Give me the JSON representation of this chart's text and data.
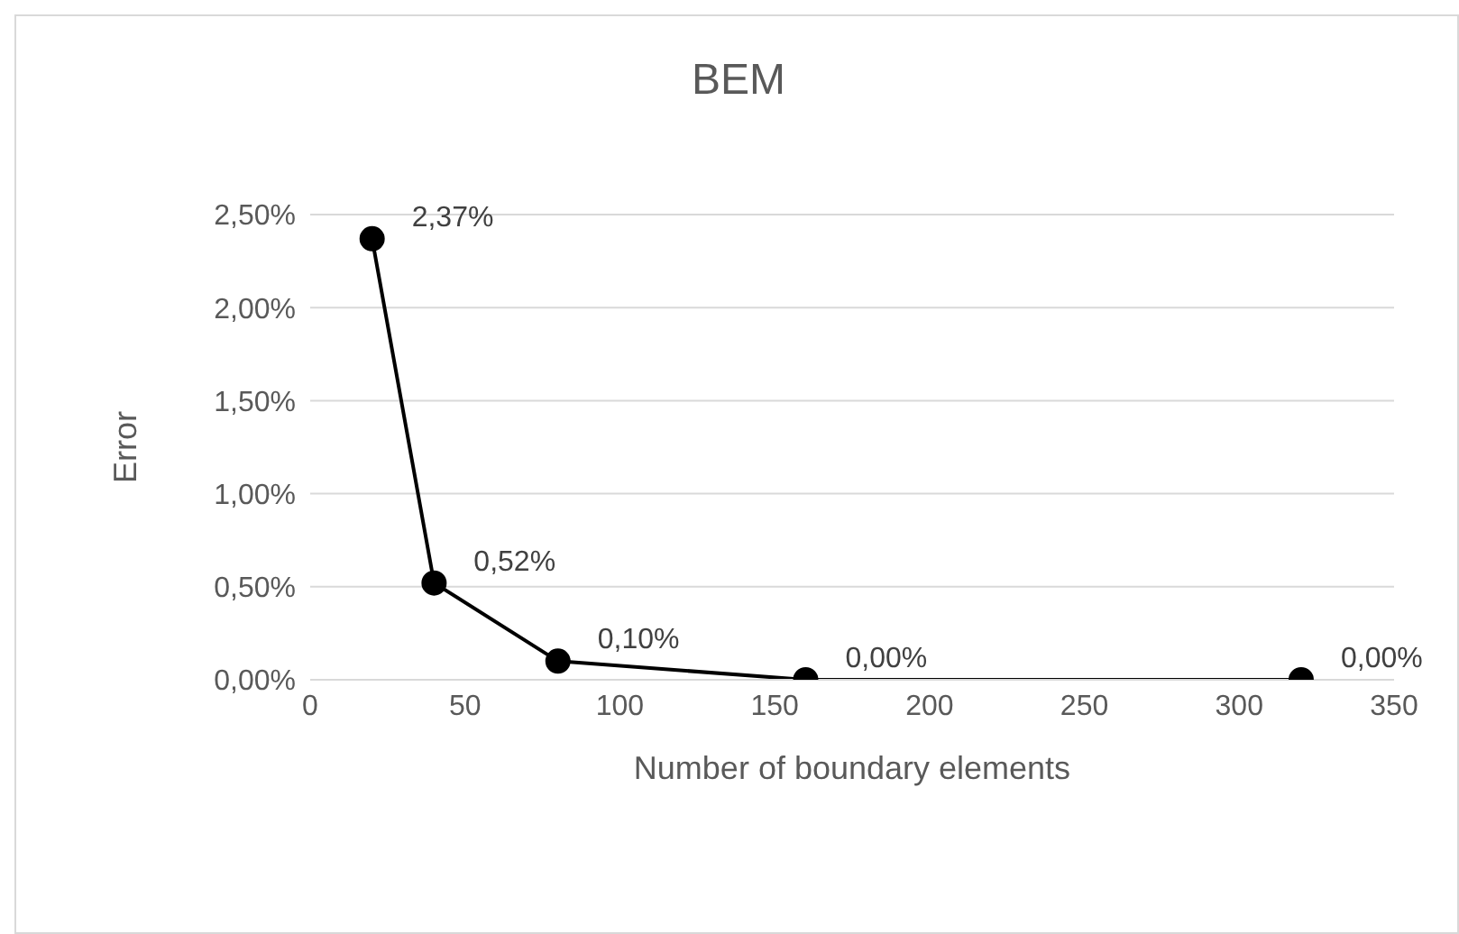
{
  "chart_data": {
    "type": "line",
    "title": "BEM",
    "xlabel": "Number of boundary elements",
    "ylabel": "Error",
    "x": [
      20,
      40,
      80,
      160,
      320
    ],
    "series": [
      {
        "color": "#000000",
        "values": [
          2.37,
          0.52,
          0.1,
          0.0,
          0.0
        ],
        "value_labels": [
          "2,37%",
          "0,52%",
          "0,10%",
          "0,00%",
          "0,00%"
        ]
      }
    ],
    "xlim": [
      0,
      350
    ],
    "xticks": [
      0,
      50,
      100,
      150,
      200,
      250,
      300,
      350
    ],
    "ylim": [
      0,
      2.5
    ],
    "yticks": [
      {
        "value": 0,
        "label": "0,00%"
      },
      {
        "value": 0.5,
        "label": "0,50%"
      },
      {
        "value": 1,
        "label": "1,00%"
      },
      {
        "value": 1.5,
        "label": "1,50%"
      },
      {
        "value": 2,
        "label": "2,00%"
      },
      {
        "value": 2.5,
        "label": "2,50%"
      }
    ],
    "grid": "y",
    "marker": "circle",
    "line_style": "solid"
  }
}
